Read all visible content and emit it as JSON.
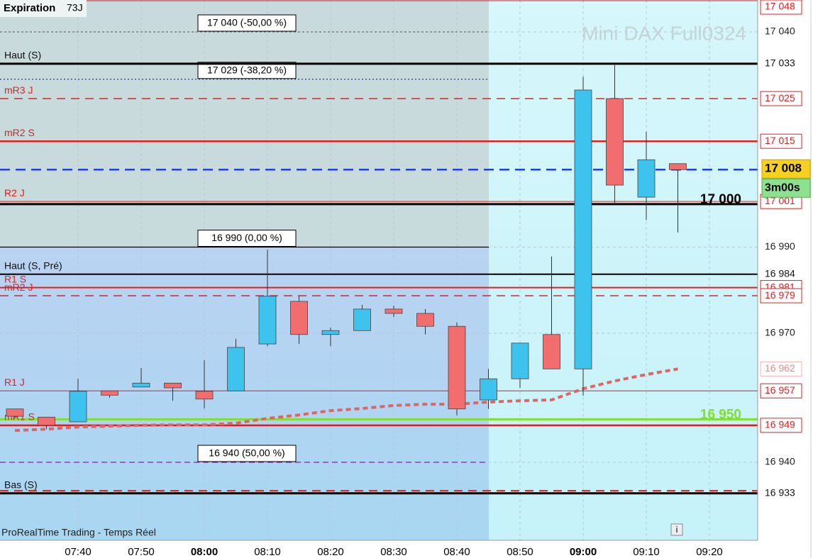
{
  "chart_data": {
    "type": "candlestick",
    "title": "Mini DAX Full0324",
    "expiration_label": "Expiration",
    "expiration_value": "73J",
    "footer": "ProRealTime Trading - Temps Réel",
    "categories": [
      null,
      null,
      "07:40",
      null,
      "07:50",
      null,
      "08:00",
      null,
      "08:10",
      null,
      "08:20",
      null,
      "08:30",
      null,
      "08:40",
      null,
      "08:50",
      null,
      "09:00",
      null,
      "09:10",
      null,
      "09:20"
    ],
    "open": [
      16952.4,
      16950.5,
      16949.4,
      16956.6,
      16957.5,
      16958.4,
      16956.5,
      16956.6,
      16967.5,
      16977.4,
      16969.7,
      16970.6,
      16975.6,
      16974.6,
      16971.6,
      16954.5,
      16959.4,
      16969.7,
      16961.7,
      17024.5,
      17001.6,
      17009.4,
      null
    ],
    "high": [
      16952.4,
      16950.5,
      16959.4,
      16956.6,
      16961.9,
      16958.4,
      16963.7,
      16968.7,
      16989.4,
      16978.6,
      16971.3,
      16976.6,
      16976.4,
      16975.6,
      16972.5,
      16961.7,
      16967.7,
      16987.8,
      17029.6,
      17032.3,
      17016.8,
      17009.4,
      null
    ],
    "low": [
      16950.2,
      16947.7,
      16949.4,
      16955.0,
      16957.5,
      16954.3,
      16952.5,
      16956.6,
      16967.0,
      16967.5,
      16967.0,
      16970.6,
      16973.8,
      16969.7,
      16950.9,
      16952.4,
      16957.3,
      16961.7,
      16955.5,
      17000.0,
      16996.3,
      16993.4,
      null
    ],
    "close": [
      16950.7,
      16948.6,
      16956.5,
      16955.6,
      16958.4,
      16957.3,
      16954.7,
      16966.7,
      16978.6,
      16969.7,
      16970.6,
      16975.6,
      16974.6,
      16971.6,
      16952.4,
      16959.4,
      16967.7,
      16961.7,
      17026.5,
      17004.4,
      17010.3,
      17008,
      null
    ],
    "up_color": "#3ec3ee",
    "down_color": "#f26e6e",
    "moving_average": {
      "color": "#e06464",
      "value_label": "16 962",
      "values": [
        16947.4,
        16947.7,
        16948.2,
        16948.4,
        16948.6,
        16948.7,
        16948.7,
        16949.1,
        16950.2,
        16951.0,
        16952.0,
        16952.5,
        16953.2,
        16953.5,
        16953.5,
        16954.0,
        16954.3,
        16954.5,
        16957.1,
        16958.9,
        16960.4,
        16961.7,
        null
      ]
    },
    "ylim": [
      16922,
      17048
    ],
    "yticks": [
      {
        "value": 17040,
        "label": "17 040"
      },
      {
        "value": 16990,
        "label": "16 990"
      },
      {
        "value": 16970,
        "label": "16 970"
      },
      {
        "value": 16940,
        "label": "16 940"
      }
    ],
    "grid": true,
    "levels": [
      {
        "value": 17048,
        "value_label": "17 048",
        "color": "#e02020",
        "width": 1,
        "dash": "none"
      },
      {
        "label": "Haut (S)",
        "value": 17032.6,
        "value_label": "17 033",
        "color": "#000000",
        "width": 3,
        "dash": "none"
      },
      {
        "label": "mR3 J",
        "value": 17024.5,
        "value_label": "17 025",
        "color": "#e02020",
        "width": 1.5,
        "dash": "12,8"
      },
      {
        "label": "mR2 S",
        "value": 17014.6,
        "value_label": "17 015",
        "color": "#e02020",
        "width": 2.5,
        "dash": "none"
      },
      {
        "label": "R2 J",
        "value": 17000.6,
        "value_label": "17 001",
        "color": "#e02020",
        "width": 1,
        "dash": "none"
      },
      {
        "label": "17 000",
        "label_position": "right",
        "value": 17000,
        "color": "#000000",
        "width": 3,
        "dash": "none"
      },
      {
        "label": "Haut (S, Pré)",
        "value": 16983.7,
        "value_label": "16 984",
        "color": "#000000",
        "width": 2,
        "dash": "none"
      },
      {
        "label": "R1 S",
        "value": 16980.6,
        "value_label": "16 981",
        "color": "#e02020",
        "width": 2,
        "dash": "none"
      },
      {
        "label": "mR2 J",
        "value": 16978.7,
        "value_label": "16 979",
        "color": "#e02020",
        "width": 1.5,
        "dash": "12,8"
      },
      {
        "label": "R1 J",
        "value": 16956.6,
        "value_label": "16 957",
        "color": "#e02020",
        "width": 1,
        "dash": "none"
      },
      {
        "label": "16 950",
        "label_position": "right",
        "value": 16950,
        "color": "#80e030",
        "width": 3,
        "dash": "none"
      },
      {
        "label": "mR1 S",
        "value": 16948.6,
        "value_label": "16 949",
        "color": "#e02020",
        "width": 2.5,
        "dash": "none"
      },
      {
        "value": 16933.4,
        "color": "#e02020",
        "width": 2,
        "dash": "12,8"
      },
      {
        "label": "Bas (S)",
        "value": 16932.8,
        "value_label": "16 933",
        "color": "#000000",
        "width": 3,
        "dash": "none"
      }
    ],
    "fibonacci": [
      {
        "value": 17040,
        "label": "17 040 (-50,00 %)",
        "color": "#707070",
        "dash": "3,3"
      },
      {
        "value": 17029,
        "label": "17 029 (-38,20 %)",
        "color": "#2030d0",
        "dash": "2,3"
      },
      {
        "value": 16990,
        "label": "16 990 (0,00 %)",
        "color": "#000000",
        "dash": "none"
      },
      {
        "value": 16940,
        "label": "16 940 (50,00 %)",
        "color": "#8020c0",
        "dash": "8,5"
      }
    ],
    "current_price": {
      "value": 17008,
      "value_label": "17 008",
      "timer": "3m00s",
      "color": "#2040e0"
    }
  }
}
